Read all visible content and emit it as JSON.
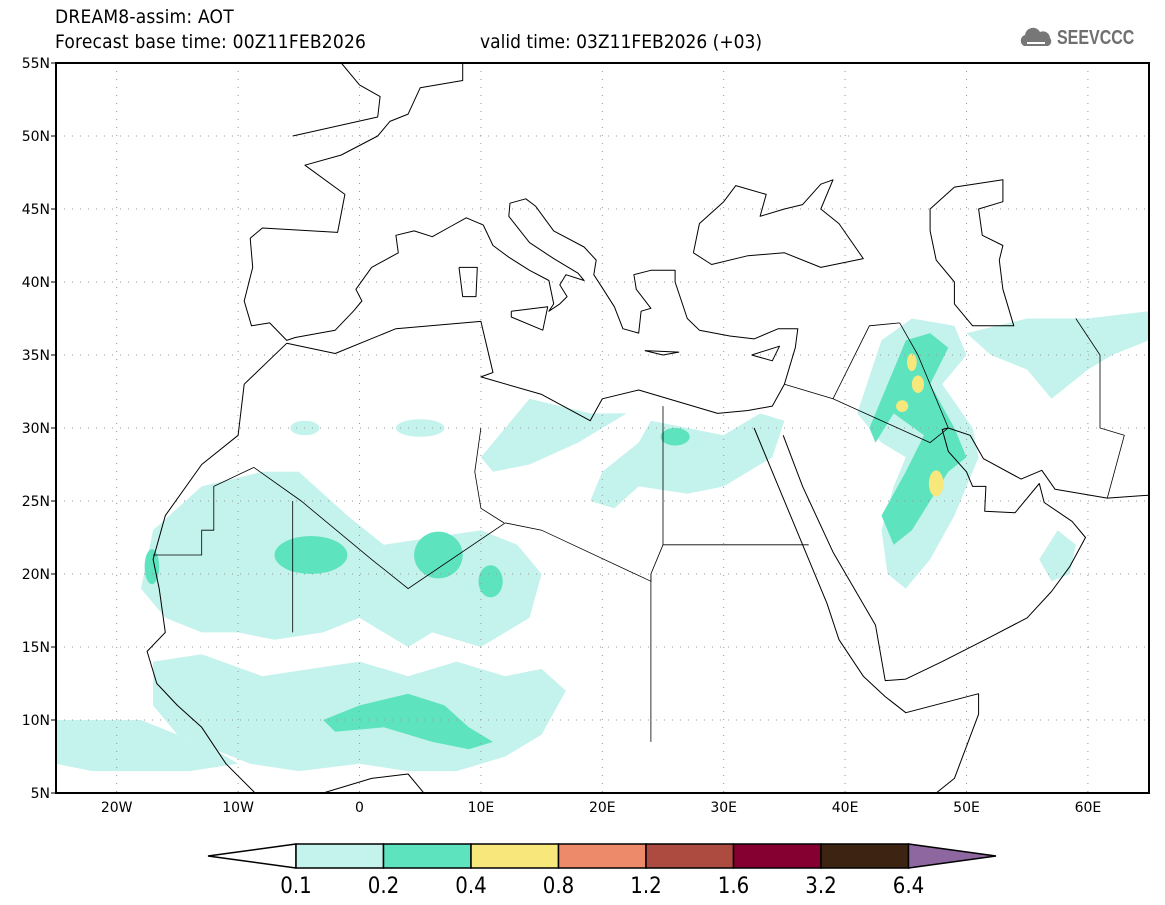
{
  "header": {
    "title": "DREAM8-assim: AOT",
    "base_time": "Forecast base time: 00Z11FEB2026",
    "valid_time": "valid time: 03Z11FEB2026 (+03)"
  },
  "logo": {
    "text": "SEEVCCC",
    "icon": "cloud-icon"
  },
  "map": {
    "lat_labels": [
      "55N",
      "50N",
      "45N",
      "40N",
      "35N",
      "30N",
      "25N",
      "20N",
      "15N",
      "10N",
      "5N"
    ],
    "lon_labels": [
      "20W",
      "10W",
      "0",
      "10E",
      "20E",
      "30E",
      "40E",
      "50E",
      "60E"
    ]
  },
  "colorbar": {
    "labels": [
      "0.1",
      "0.2",
      "0.4",
      "0.8",
      "1.2",
      "1.6",
      "3.2",
      "6.4"
    ],
    "colors": [
      "#ffffff",
      "#c4f2ec",
      "#5ee3bf",
      "#f8e87c",
      "#ec8a69",
      "#ad4b41",
      "#850030",
      "#3d2412",
      "#8f67a0"
    ]
  }
}
